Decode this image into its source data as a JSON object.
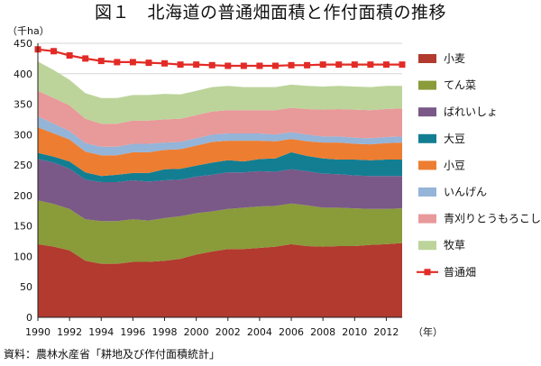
{
  "chart_data": {
    "type": "area",
    "title": "図１　北海道の普通畑面積と作付面積の推移",
    "ylabel": "（千ha）",
    "xlabel": "（年）",
    "ylim": [
      0,
      450
    ],
    "yticks": [
      0,
      50,
      100,
      150,
      200,
      250,
      300,
      350,
      400,
      450
    ],
    "xticks": [
      1990,
      1992,
      1994,
      1996,
      1998,
      2000,
      2002,
      2004,
      2006,
      2008,
      2010,
      2012
    ],
    "grid": true,
    "legend_position": "right",
    "x": [
      1990,
      1991,
      1992,
      1993,
      1994,
      1995,
      1996,
      1997,
      1998,
      1999,
      2000,
      2001,
      2002,
      2003,
      2004,
      2005,
      2006,
      2007,
      2008,
      2009,
      2010,
      2011,
      2012,
      2013
    ],
    "series": [
      {
        "name": "小麦",
        "color": "#b23a2e",
        "kind": "stack",
        "values": [
          120,
          116,
          110,
          93,
          88,
          88,
          91,
          91,
          93,
          96,
          103,
          108,
          112,
          112,
          114,
          116,
          120,
          117,
          116,
          117,
          117,
          119,
          120,
          122
        ]
      },
      {
        "name": "てん菜",
        "color": "#8a9b3a",
        "kind": "stack",
        "values": [
          72,
          70,
          68,
          68,
          70,
          70,
          70,
          68,
          70,
          70,
          68,
          66,
          66,
          68,
          68,
          67,
          67,
          67,
          64,
          63,
          62,
          59,
          58,
          57
        ]
      },
      {
        "name": "ばれいしょ",
        "color": "#7a5888",
        "kind": "stack",
        "values": [
          68,
          68,
          66,
          65,
          64,
          64,
          64,
          64,
          62,
          60,
          60,
          60,
          60,
          58,
          58,
          56,
          56,
          56,
          56,
          55,
          54,
          54,
          54,
          53
        ]
      },
      {
        "name": "大豆",
        "color": "#137e92",
        "kind": "stack",
        "values": [
          10,
          10,
          12,
          12,
          10,
          12,
          12,
          14,
          18,
          18,
          18,
          20,
          20,
          18,
          20,
          22,
          28,
          25,
          25,
          24,
          26,
          26,
          27,
          27
        ]
      },
      {
        "name": "小豆",
        "color": "#ed7d31",
        "kind": "stack",
        "values": [
          42,
          38,
          36,
          34,
          34,
          32,
          34,
          34,
          32,
          32,
          33,
          34,
          32,
          34,
          30,
          28,
          22,
          24,
          26,
          28,
          26,
          26,
          27,
          28
        ]
      },
      {
        "name": "いんげん",
        "color": "#94b4d8",
        "kind": "stack",
        "values": [
          18,
          16,
          14,
          14,
          14,
          14,
          14,
          14,
          12,
          12,
          12,
          12,
          12,
          12,
          12,
          11,
          11,
          11,
          10,
          10,
          10,
          10,
          10,
          10
        ]
      },
      {
        "name": "青刈りとうもろこし",
        "color": "#e8999a",
        "kind": "stack",
        "values": [
          42,
          42,
          42,
          40,
          38,
          38,
          38,
          38,
          38,
          38,
          38,
          38,
          38,
          38,
          38,
          40,
          40,
          42,
          44,
          45,
          46,
          46,
          46,
          46
        ]
      },
      {
        "name": "牧草",
        "color": "#bcd49a",
        "kind": "stack",
        "values": [
          48,
          46,
          42,
          42,
          42,
          42,
          42,
          42,
          42,
          40,
          40,
          40,
          40,
          38,
          38,
          38,
          38,
          38,
          38,
          38,
          38,
          38,
          38,
          37
        ]
      },
      {
        "name": "普通畑",
        "color": "#e22b26",
        "kind": "line",
        "values": [
          440,
          437,
          430,
          425,
          421,
          419,
          419,
          418,
          417,
          415,
          415,
          414,
          413,
          413,
          413,
          413,
          414,
          414,
          415,
          415,
          415,
          415,
          415,
          415
        ]
      }
    ]
  },
  "footer": {
    "source": "資料：農林水産省「耕地及び作付面積統計」"
  }
}
